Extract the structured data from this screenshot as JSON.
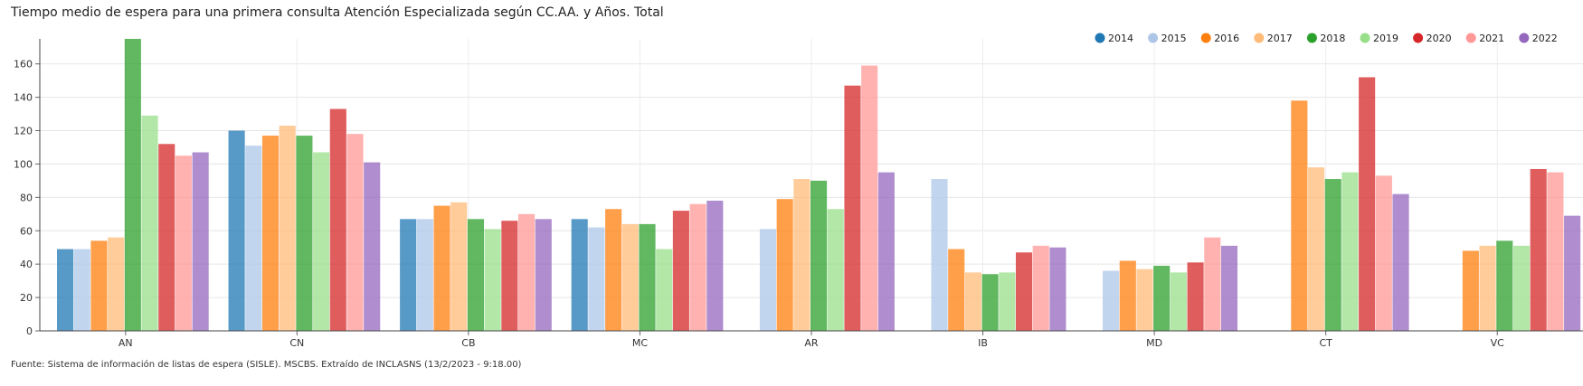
{
  "header": {
    "title": "Tiempo medio de espera para una primera consulta Atención Especializada según CC.AA. y Años. Total"
  },
  "footer": {
    "source": "Fuente: Sistema de información de listas de espera (SISLE). MSCBS. Extraído de INCLASNS (13/2/2023 - 9:18.00)"
  },
  "chart_data": {
    "type": "bar",
    "title": "Tiempo medio de espera para una primera consulta Atención Especializada según CC.AA. y Años. Total",
    "xlabel": "",
    "ylabel": "",
    "categories": [
      "AN",
      "CN",
      "CB",
      "MC",
      "AR",
      "IB",
      "MD",
      "CT",
      "VC"
    ],
    "ylim": [
      0,
      175
    ],
    "yticks": [
      0,
      20,
      40,
      60,
      80,
      100,
      120,
      140,
      160
    ],
    "grid": true,
    "legend_position": "top-right",
    "series": [
      {
        "name": "2014",
        "color": "#1f77b4",
        "values": [
          49,
          120,
          67,
          67,
          null,
          null,
          null,
          null,
          null
        ]
      },
      {
        "name": "2015",
        "color": "#aec7e8",
        "values": [
          49,
          111,
          67,
          62,
          61,
          91,
          36,
          null,
          null
        ]
      },
      {
        "name": "2016",
        "color": "#ff7f0e",
        "values": [
          54,
          117,
          75,
          73,
          79,
          49,
          42,
          138,
          48
        ]
      },
      {
        "name": "2017",
        "color": "#ffbb78",
        "values": [
          56,
          123,
          77,
          64,
          91,
          35,
          37,
          98,
          51
        ]
      },
      {
        "name": "2018",
        "color": "#2ca02c",
        "values": [
          176,
          117,
          67,
          64,
          90,
          34,
          39,
          91,
          54
        ]
      },
      {
        "name": "2019",
        "color": "#98df8a",
        "values": [
          129,
          107,
          61,
          49,
          73,
          35,
          35,
          95,
          51
        ]
      },
      {
        "name": "2020",
        "color": "#d62728",
        "values": [
          112,
          133,
          66,
          72,
          147,
          47,
          41,
          152,
          97
        ]
      },
      {
        "name": "2021",
        "color": "#ff9896",
        "values": [
          105,
          118,
          70,
          76,
          159,
          51,
          56,
          93,
          95
        ]
      },
      {
        "name": "2022",
        "color": "#9467bd",
        "values": [
          107,
          101,
          67,
          78,
          95,
          50,
          51,
          82,
          69
        ]
      }
    ]
  }
}
